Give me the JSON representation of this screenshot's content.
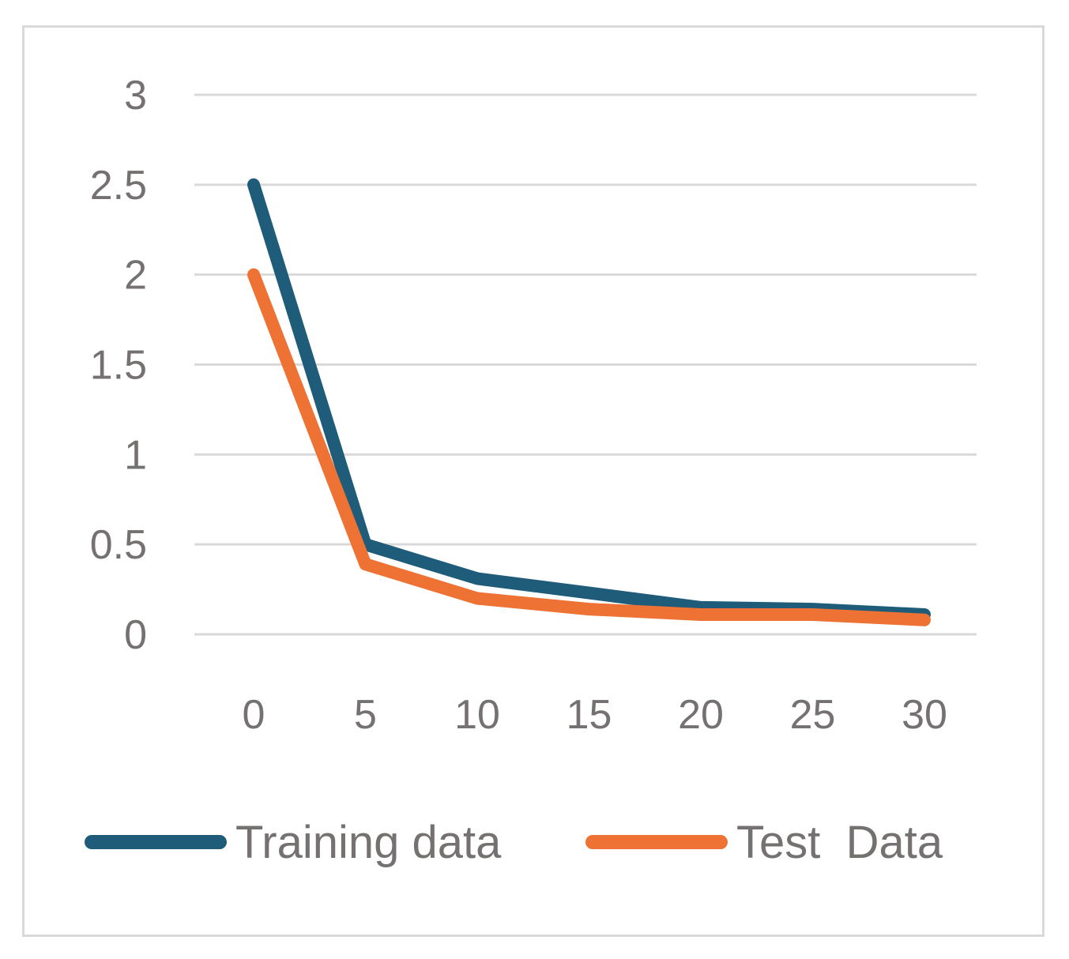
{
  "chart_data": {
    "type": "line",
    "title": "",
    "xlabel": "",
    "ylabel": "",
    "x": [
      0,
      5,
      10,
      15,
      20,
      25,
      30
    ],
    "x_tick_labels": [
      "0",
      "5",
      "10",
      "15",
      "20",
      "25",
      "30"
    ],
    "y_tick_labels": [
      "0",
      "0.5",
      "1",
      "1.5",
      "2",
      "2.5",
      "3"
    ],
    "ylim": [
      0,
      3
    ],
    "grid": "horizontal",
    "legend_position": "bottom",
    "series": [
      {
        "name": "Training data",
        "color": "#1f5c7a",
        "values": [
          2.5,
          0.5,
          0.31,
          0.23,
          0.15,
          0.14,
          0.11
        ]
      },
      {
        "name": "Test  Data",
        "color": "#ed7234",
        "values": [
          2.0,
          0.39,
          0.2,
          0.14,
          0.11,
          0.11,
          0.08
        ]
      }
    ]
  }
}
